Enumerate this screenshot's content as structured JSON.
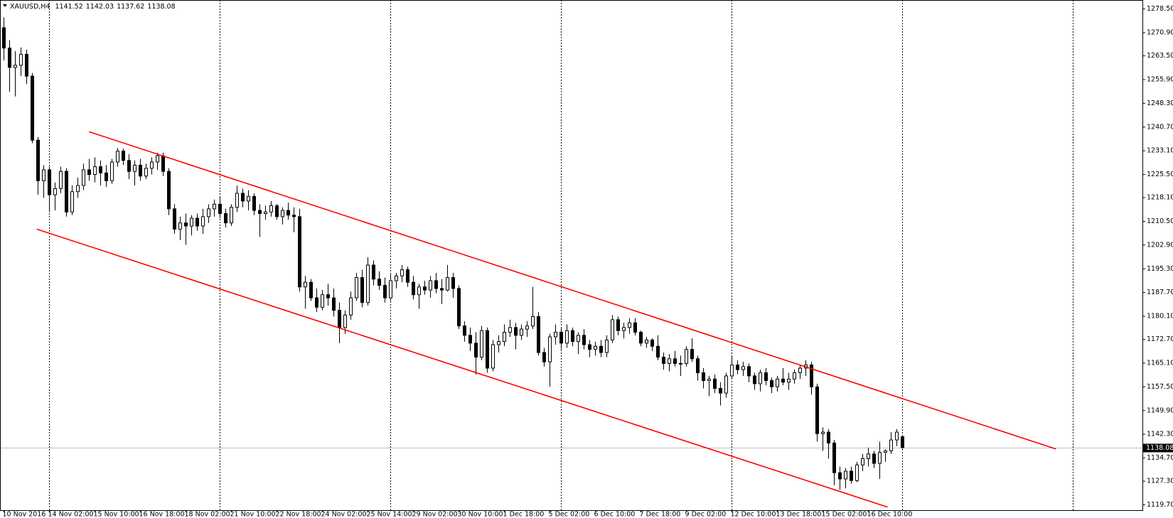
{
  "chart_data": {
    "type": "candlestick",
    "symbol": "XAUUSD,H4",
    "up_color": "#ffffff",
    "down_color": "#000000",
    "line_color": "#000000",
    "categories": [
      "10 Nov 2016",
      null,
      null,
      null,
      null,
      null,
      null,
      null,
      "14 Nov 02:00",
      null,
      null,
      null,
      null,
      null,
      null,
      null,
      "15 Nov 10:00",
      null,
      null,
      null,
      null,
      null,
      null,
      null,
      "16 Nov 18:00",
      null,
      null,
      null,
      null,
      null,
      null,
      null,
      "18 Nov 02:00",
      null,
      null,
      null,
      null,
      null,
      null,
      null,
      "21 Nov 10:00",
      null,
      null,
      null,
      null,
      null,
      null,
      null,
      "22 Nov 18:00",
      null,
      null,
      null,
      null,
      null,
      null,
      null,
      "24 Nov 02:00",
      null,
      null,
      null,
      null,
      null,
      null,
      null,
      "25 Nov 14:00",
      null,
      null,
      null,
      null,
      null,
      null,
      null,
      "29 Nov 02:00",
      null,
      null,
      null,
      null,
      null,
      null,
      null,
      "30 Nov 10:00",
      null,
      null,
      null,
      null,
      null,
      null,
      null,
      "1 Dec 18:00",
      null,
      null,
      null,
      null,
      null,
      null,
      null,
      "5 Dec 02:00",
      null,
      null,
      null,
      null,
      null,
      null,
      null,
      "6 Dec 10:00",
      null,
      null,
      null,
      null,
      null,
      null,
      null,
      "7 Dec 18:00",
      null,
      null,
      null,
      null,
      null,
      null,
      null,
      "9 Dec 02:00",
      null,
      null,
      null,
      null,
      null,
      null,
      null,
      "12 Dec 10:00",
      null,
      null,
      null,
      null,
      null,
      null,
      null,
      "13 Dec 18:00",
      null,
      null,
      null,
      null,
      null,
      null,
      null,
      "15 Dec 02:00",
      null,
      null,
      null,
      null,
      null,
      null,
      null,
      "16 Dec 10:00",
      null,
      null,
      null,
      null,
      null,
      null
    ],
    "ohlc": [
      [
        1272.5,
        1275.8,
        1262.0,
        1266.0
      ],
      [
        1266.0,
        1268.5,
        1252.0,
        1259.8
      ],
      [
        1259.8,
        1265.0,
        1250.5,
        1260.5
      ],
      [
        1260.5,
        1266.2,
        1257.0,
        1264.0
      ],
      [
        1264.0,
        1265.5,
        1254.5,
        1257.0
      ],
      [
        1257.0,
        1258.0,
        1235.5,
        1236.5
      ],
      [
        1236.5,
        1237.5,
        1219.0,
        1223.5
      ],
      [
        1223.5,
        1228.5,
        1218.0,
        1227.0
      ],
      [
        1227.0,
        1228.0,
        1213.5,
        1219.0
      ],
      [
        1219.0,
        1223.0,
        1214.0,
        1221.0
      ],
      [
        1221.0,
        1228.0,
        1219.5,
        1226.5
      ],
      [
        1226.5,
        1227.5,
        1212.0,
        1213.5
      ],
      [
        1213.5,
        1222.0,
        1212.5,
        1220.0
      ],
      [
        1220.0,
        1224.5,
        1218.0,
        1222.0
      ],
      [
        1222.0,
        1229.0,
        1220.5,
        1227.0
      ],
      [
        1227.0,
        1230.5,
        1223.5,
        1225.5
      ],
      [
        1225.5,
        1231.0,
        1223.0,
        1228.0
      ],
      [
        1228.0,
        1230.0,
        1222.0,
        1226.0
      ],
      [
        1226.0,
        1228.5,
        1221.5,
        1223.5
      ],
      [
        1223.5,
        1230.5,
        1222.5,
        1229.5
      ],
      [
        1229.5,
        1234.0,
        1228.0,
        1233.0
      ],
      [
        1233.0,
        1233.8,
        1228.5,
        1230.0
      ],
      [
        1230.0,
        1232.0,
        1224.0,
        1226.5
      ],
      [
        1226.5,
        1230.0,
        1222.0,
        1228.5
      ],
      [
        1228.5,
        1230.5,
        1223.5,
        1225.0
      ],
      [
        1225.0,
        1229.0,
        1224.0,
        1227.5
      ],
      [
        1227.5,
        1231.0,
        1225.5,
        1229.5
      ],
      [
        1229.5,
        1232.5,
        1227.0,
        1231.5
      ],
      [
        1231.5,
        1232.5,
        1225.0,
        1226.5
      ],
      [
        1226.5,
        1227.5,
        1212.5,
        1214.5
      ],
      [
        1214.5,
        1216.0,
        1206.5,
        1208.0
      ],
      [
        1208.0,
        1212.0,
        1204.5,
        1210.0
      ],
      [
        1210.0,
        1213.0,
        1203.0,
        1209.0
      ],
      [
        1209.0,
        1212.5,
        1206.0,
        1211.5
      ],
      [
        1211.5,
        1213.0,
        1207.5,
        1209.0
      ],
      [
        1209.0,
        1214.5,
        1206.5,
        1212.0
      ],
      [
        1212.0,
        1216.0,
        1210.0,
        1214.5
      ],
      [
        1214.5,
        1217.5,
        1212.0,
        1216.0
      ],
      [
        1216.0,
        1218.5,
        1211.5,
        1213.0
      ],
      [
        1213.0,
        1214.5,
        1208.5,
        1210.0
      ],
      [
        1210.0,
        1216.0,
        1209.0,
        1215.0
      ],
      [
        1215.0,
        1222.0,
        1213.5,
        1219.5
      ],
      [
        1219.5,
        1221.0,
        1215.0,
        1217.0
      ],
      [
        1217.0,
        1220.5,
        1214.0,
        1218.5
      ],
      [
        1218.5,
        1219.5,
        1212.5,
        1214.0
      ],
      [
        1214.0,
        1216.0,
        1205.5,
        1213.0
      ],
      [
        1213.0,
        1215.5,
        1211.0,
        1213.5
      ],
      [
        1213.5,
        1217.0,
        1212.0,
        1215.5
      ],
      [
        1215.5,
        1216.0,
        1211.0,
        1212.0
      ],
      [
        1212.0,
        1215.0,
        1209.5,
        1214.0
      ],
      [
        1214.0,
        1216.5,
        1211.0,
        1212.5
      ],
      [
        1212.5,
        1215.0,
        1207.0,
        1212.0
      ],
      [
        1212.0,
        1214.5,
        1188.0,
        1189.5
      ],
      [
        1189.5,
        1193.0,
        1182.5,
        1191.0
      ],
      [
        1191.0,
        1192.0,
        1185.0,
        1186.0
      ],
      [
        1186.0,
        1189.0,
        1181.5,
        1183.0
      ],
      [
        1183.0,
        1188.5,
        1182.0,
        1187.0
      ],
      [
        1187.0,
        1190.5,
        1183.5,
        1186.0
      ],
      [
        1186.0,
        1189.0,
        1180.0,
        1182.0
      ],
      [
        1182.0,
        1184.5,
        1171.5,
        1176.5
      ],
      [
        1176.5,
        1182.0,
        1174.5,
        1180.5
      ],
      [
        1180.5,
        1188.0,
        1179.0,
        1186.0
      ],
      [
        1186.0,
        1194.0,
        1185.0,
        1192.5
      ],
      [
        1192.5,
        1195.0,
        1183.0,
        1184.5
      ],
      [
        1184.5,
        1199.0,
        1183.5,
        1196.5
      ],
      [
        1196.5,
        1198.0,
        1190.0,
        1192.0
      ],
      [
        1192.0,
        1194.5,
        1188.5,
        1190.0
      ],
      [
        1190.0,
        1192.5,
        1184.5,
        1186.0
      ],
      [
        1186.0,
        1193.5,
        1185.0,
        1191.5
      ],
      [
        1191.5,
        1194.0,
        1189.0,
        1193.0
      ],
      [
        1193.0,
        1196.5,
        1191.0,
        1195.0
      ],
      [
        1195.0,
        1196.0,
        1189.5,
        1191.0
      ],
      [
        1191.0,
        1193.0,
        1185.5,
        1187.0
      ],
      [
        1187.0,
        1190.5,
        1182.5,
        1189.5
      ],
      [
        1189.5,
        1191.5,
        1187.0,
        1188.5
      ],
      [
        1188.5,
        1193.0,
        1186.0,
        1191.5
      ],
      [
        1191.5,
        1194.0,
        1187.5,
        1189.0
      ],
      [
        1189.0,
        1192.0,
        1184.0,
        1188.5
      ],
      [
        1188.5,
        1196.5,
        1188.0,
        1192.5
      ],
      [
        1192.5,
        1194.0,
        1186.0,
        1189.0
      ],
      [
        1189.0,
        1190.0,
        1176.0,
        1177.0
      ],
      [
        1177.0,
        1178.5,
        1172.0,
        1174.0
      ],
      [
        1174.0,
        1176.5,
        1169.0,
        1171.5
      ],
      [
        1171.5,
        1175.0,
        1161.5,
        1167.0
      ],
      [
        1167.0,
        1177.0,
        1166.0,
        1175.5
      ],
      [
        1175.5,
        1176.5,
        1162.0,
        1163.5
      ],
      [
        1163.5,
        1172.5,
        1162.5,
        1171.0
      ],
      [
        1171.0,
        1174.0,
        1168.5,
        1172.0
      ],
      [
        1172.0,
        1177.5,
        1170.5,
        1175.0
      ],
      [
        1175.0,
        1179.0,
        1173.5,
        1176.5
      ],
      [
        1176.5,
        1178.0,
        1169.5,
        1174.0
      ],
      [
        1174.0,
        1177.5,
        1172.5,
        1176.0
      ],
      [
        1176.0,
        1178.5,
        1173.5,
        1177.0
      ],
      [
        1177.0,
        1189.5,
        1176.0,
        1180.0
      ],
      [
        1180.0,
        1181.5,
        1167.5,
        1168.5
      ],
      [
        1168.5,
        1170.0,
        1164.0,
        1165.5
      ],
      [
        1165.5,
        1174.5,
        1157.5,
        1173.5
      ],
      [
        1173.5,
        1177.5,
        1171.0,
        1175.0
      ],
      [
        1175.0,
        1176.5,
        1169.5,
        1171.5
      ],
      [
        1171.5,
        1177.5,
        1170.0,
        1175.5
      ],
      [
        1175.5,
        1176.5,
        1170.5,
        1172.0
      ],
      [
        1172.0,
        1175.0,
        1168.0,
        1174.0
      ],
      [
        1174.0,
        1176.0,
        1169.5,
        1171.0
      ],
      [
        1171.0,
        1172.5,
        1167.0,
        1169.5
      ],
      [
        1169.5,
        1172.0,
        1167.5,
        1170.5
      ],
      [
        1170.5,
        1172.5,
        1167.0,
        1168.5
      ],
      [
        1168.5,
        1174.0,
        1167.0,
        1172.5
      ],
      [
        1172.5,
        1180.5,
        1171.5,
        1179.0
      ],
      [
        1179.0,
        1180.0,
        1174.0,
        1175.5
      ],
      [
        1175.5,
        1178.0,
        1173.0,
        1176.5
      ],
      [
        1176.5,
        1179.5,
        1174.5,
        1178.0
      ],
      [
        1178.0,
        1179.5,
        1174.0,
        1175.0
      ],
      [
        1175.0,
        1175.5,
        1170.5,
        1171.5
      ],
      [
        1171.5,
        1173.5,
        1170.0,
        1172.5
      ],
      [
        1172.5,
        1173.0,
        1169.0,
        1170.5
      ],
      [
        1170.5,
        1174.0,
        1166.0,
        1167.0
      ],
      [
        1167.0,
        1168.5,
        1163.0,
        1165.0
      ],
      [
        1165.0,
        1168.0,
        1162.5,
        1166.5
      ],
      [
        1166.5,
        1169.0,
        1164.0,
        1165.0
      ],
      [
        1165.0,
        1167.5,
        1161.0,
        1165.0
      ],
      [
        1165.0,
        1170.5,
        1164.0,
        1169.5
      ],
      [
        1169.5,
        1173.0,
        1165.5,
        1166.5
      ],
      [
        1166.5,
        1167.5,
        1159.5,
        1162.0
      ],
      [
        1162.0,
        1163.5,
        1157.0,
        1159.5
      ],
      [
        1159.5,
        1161.0,
        1154.5,
        1160.0
      ],
      [
        1160.0,
        1161.5,
        1155.5,
        1157.0
      ],
      [
        1157.0,
        1159.0,
        1151.5,
        1155.5
      ],
      [
        1155.5,
        1162.0,
        1154.0,
        1161.0
      ],
      [
        1161.0,
        1167.5,
        1160.0,
        1164.5
      ],
      [
        1164.5,
        1166.0,
        1161.5,
        1163.0
      ],
      [
        1163.0,
        1165.5,
        1161.0,
        1164.0
      ],
      [
        1164.0,
        1165.0,
        1159.0,
        1161.0
      ],
      [
        1161.0,
        1162.0,
        1156.5,
        1158.5
      ],
      [
        1158.5,
        1163.0,
        1156.0,
        1162.0
      ],
      [
        1162.0,
        1163.5,
        1158.0,
        1159.5
      ],
      [
        1159.5,
        1160.5,
        1155.5,
        1157.5
      ],
      [
        1157.5,
        1161.0,
        1156.0,
        1160.0
      ],
      [
        1160.0,
        1163.5,
        1158.0,
        1159.0
      ],
      [
        1159.0,
        1162.0,
        1156.5,
        1160.0
      ],
      [
        1160.0,
        1163.0,
        1158.5,
        1162.0
      ],
      [
        1162.0,
        1164.5,
        1160.0,
        1163.5
      ],
      [
        1163.5,
        1166.0,
        1161.0,
        1164.5
      ],
      [
        1164.5,
        1165.5,
        1155.0,
        1157.5
      ],
      [
        1157.5,
        1158.5,
        1140.0,
        1142.5
      ],
      [
        1142.5,
        1144.5,
        1137.0,
        1143.0
      ],
      [
        1143.0,
        1144.0,
        1134.5,
        1139.5
      ],
      [
        1139.5,
        1140.5,
        1126.0,
        1130.0
      ],
      [
        1130.0,
        1132.0,
        1124.5,
        1128.0
      ],
      [
        1128.0,
        1131.5,
        1125.0,
        1130.5
      ],
      [
        1130.5,
        1132.0,
        1126.5,
        1127.5
      ],
      [
        1127.5,
        1133.5,
        1127.0,
        1132.5
      ],
      [
        1132.5,
        1136.0,
        1130.5,
        1134.5
      ],
      [
        1134.5,
        1138.0,
        1132.0,
        1136.0
      ],
      [
        1136.0,
        1137.0,
        1131.5,
        1133.0
      ],
      [
        1133.0,
        1140.0,
        1128.0,
        1136.5
      ],
      [
        1136.5,
        1137.5,
        1133.5,
        1137.0
      ],
      [
        1137.0,
        1143.0,
        1136.0,
        1140.5
      ],
      [
        1140.5,
        1144.0,
        1138.5,
        1143.0
      ],
      [
        1141.52,
        1142.03,
        1137.62,
        1138.08
      ]
    ],
    "trendlines": [
      {
        "color": "#ff0000",
        "x": [
          15.1,
          185.1
        ],
        "y": [
          1239.2,
          1137.6
        ]
      },
      {
        "color": "#ff0000",
        "x": [
          5.9,
          155.5
        ],
        "y": [
          1208.0,
          1119.0
        ]
      }
    ],
    "price_line_color": "#c0c0c0",
    "grid": true,
    "ylim": [
      1118.0,
      1280.7
    ],
    "yticks": [
      {
        "value": 1278.5,
        "label": "1278.50"
      },
      {
        "value": 1270.9,
        "label": "1270.90"
      },
      {
        "value": 1263.5,
        "label": "1263.50"
      },
      {
        "value": 1255.9,
        "label": "1255.90"
      },
      {
        "value": 1248.3,
        "label": "1248.30"
      },
      {
        "value": 1240.7,
        "label": "1240.70"
      },
      {
        "value": 1233.1,
        "label": "1233.10"
      },
      {
        "value": 1225.5,
        "label": "1225.50"
      },
      {
        "value": 1218.1,
        "label": "1218.10"
      },
      {
        "value": 1210.5,
        "label": "1210.50"
      },
      {
        "value": 1202.9,
        "label": "1202.90"
      },
      {
        "value": 1195.3,
        "label": "1195.30"
      },
      {
        "value": 1187.7,
        "label": "1187.70"
      },
      {
        "value": 1180.1,
        "label": "1180.10"
      },
      {
        "value": 1172.7,
        "label": "1172.70"
      },
      {
        "value": 1165.1,
        "label": "1165.10"
      },
      {
        "value": 1157.5,
        "label": "1157.50"
      },
      {
        "value": 1149.9,
        "label": "1149.90"
      },
      {
        "value": 1142.3,
        "label": "1142.30"
      },
      {
        "value": 1134.7,
        "label": "1134.70"
      },
      {
        "value": 1127.3,
        "label": "1127.30"
      },
      {
        "value": 1119.7,
        "label": "1119.70"
      }
    ]
  }
}
